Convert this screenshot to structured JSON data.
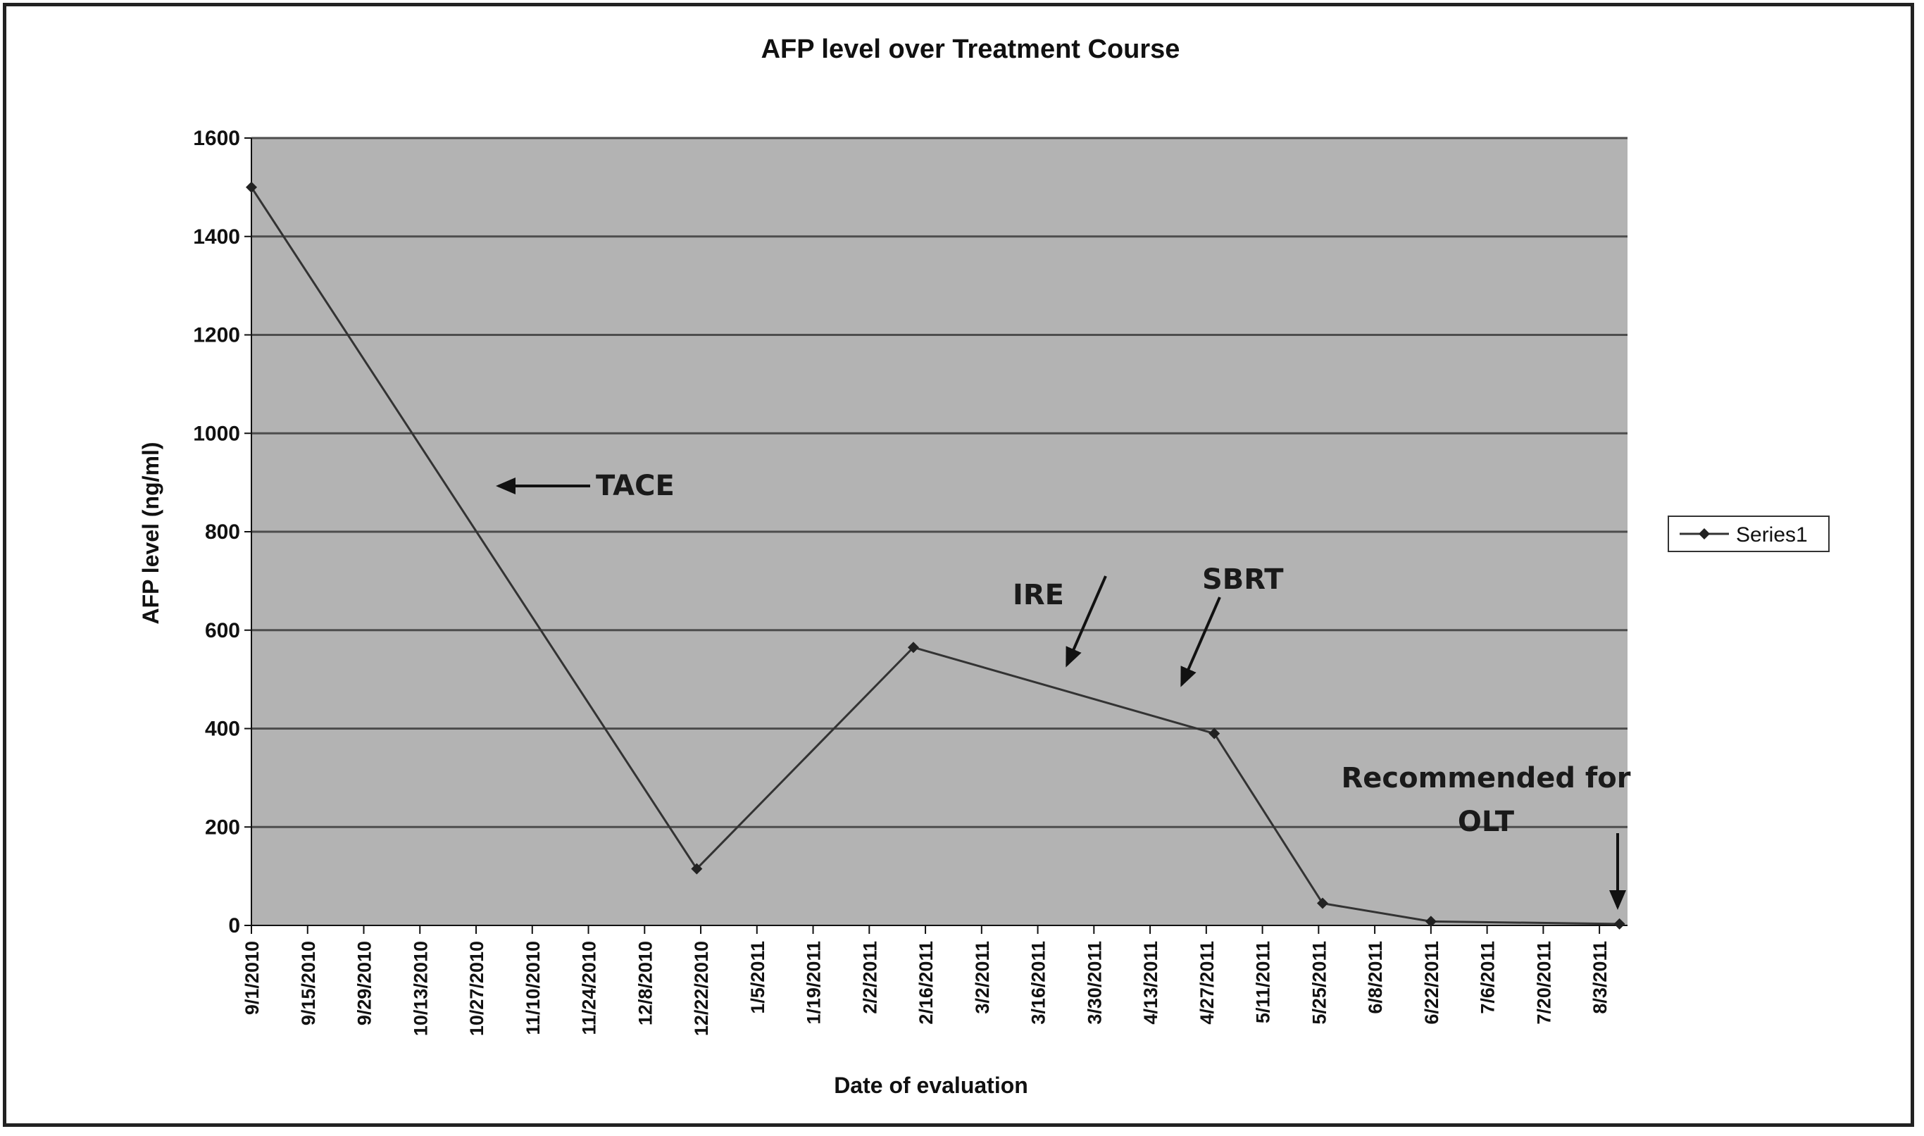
{
  "chart_data": {
    "type": "line",
    "title": "AFP level over Treatment Course",
    "xlabel": "Date of evaluation",
    "ylabel": "AFP level (ng/ml)",
    "ylim": [
      0,
      1600
    ],
    "yticks": [
      "0",
      "200",
      "400",
      "600",
      "800",
      "1000",
      "1200",
      "1400",
      "1600"
    ],
    "xticks": [
      "9/1/2010",
      "9/15/2010",
      "9/29/2010",
      "10/13/2010",
      "10/27/2010",
      "11/10/2010",
      "11/24/2010",
      "12/8/2010",
      "12/22/2010",
      "1/5/2011",
      "1/19/2011",
      "2/2/2011",
      "2/16/2011",
      "3/2/2011",
      "3/16/2011",
      "3/30/2011",
      "4/13/2011",
      "4/27/2011",
      "5/11/2011",
      "5/25/2011",
      "6/8/2011",
      "6/22/2011",
      "7/6/2011",
      "7/20/2011",
      "8/3/2011"
    ],
    "grid": true,
    "legend_position": "right",
    "series": [
      {
        "name": "Series1",
        "color": "#333333",
        "points": [
          {
            "x": "2010-09-01",
            "y": 1500
          },
          {
            "x": "2010-12-21",
            "y": 115
          },
          {
            "x": "2011-02-13",
            "y": 565
          },
          {
            "x": "2011-04-29",
            "y": 390
          },
          {
            "x": "2011-05-26",
            "y": 45
          },
          {
            "x": "2011-06-22",
            "y": 8
          },
          {
            "x": "2011-08-08",
            "y": 3
          }
        ]
      }
    ],
    "annotations": [
      {
        "text": "TACE"
      },
      {
        "text": "IRE"
      },
      {
        "text": "SBRT"
      },
      {
        "lines": [
          "Recommended for",
          "OLT"
        ]
      }
    ]
  },
  "colors": {
    "plot_background": "#b3b3b3",
    "gridline": "#4d4d4d",
    "line": "#333333",
    "frame": "#222222"
  }
}
